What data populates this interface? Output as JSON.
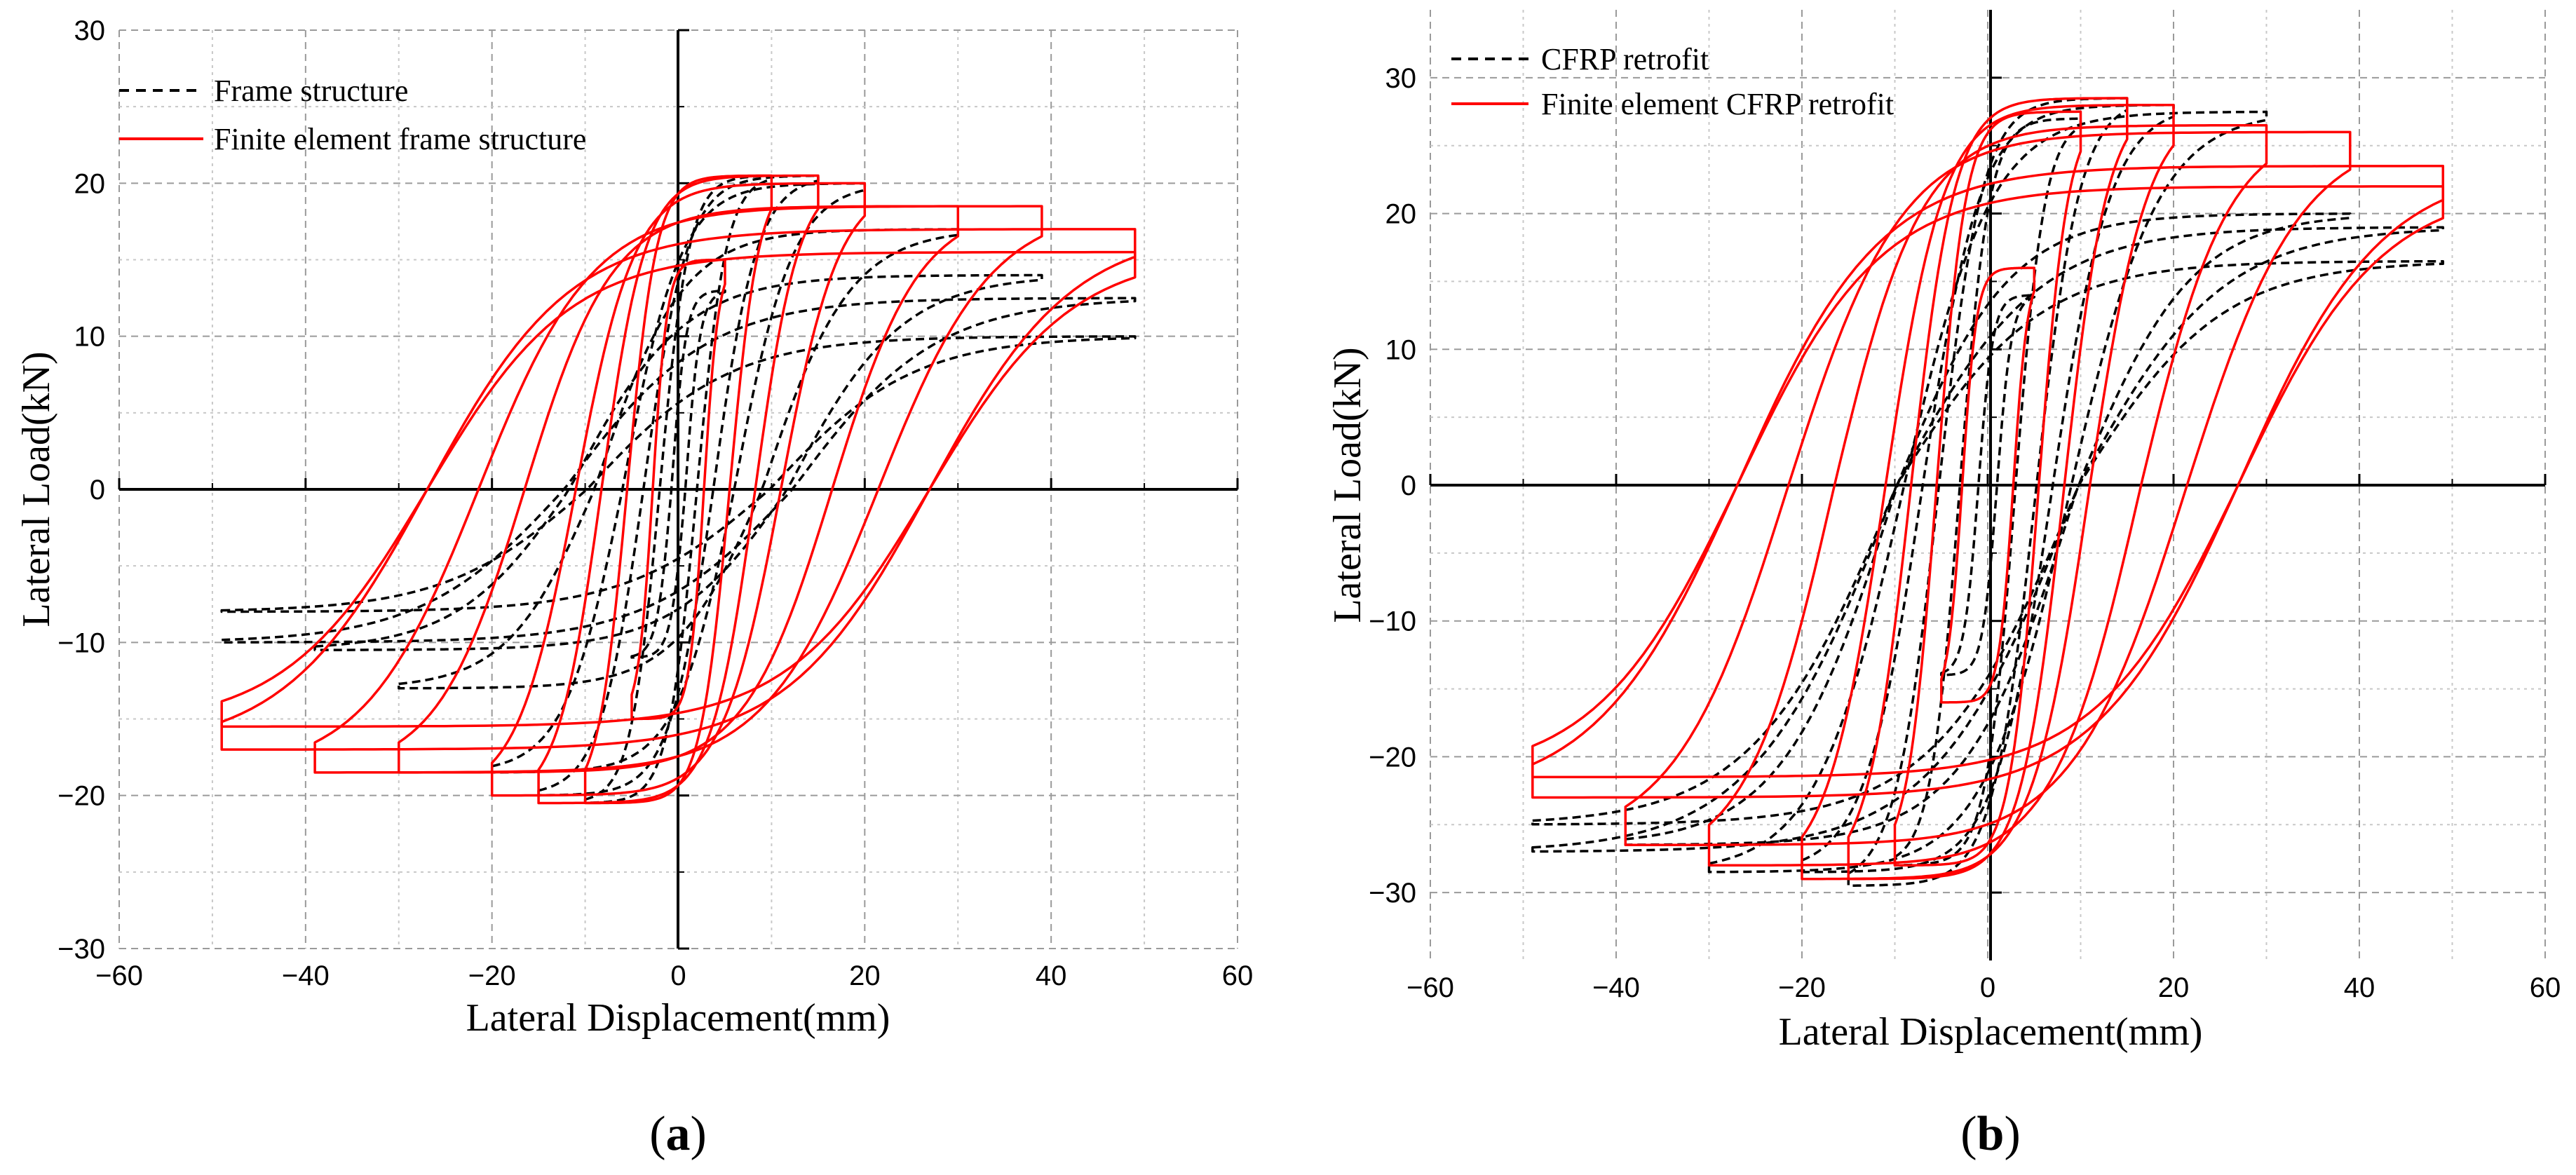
{
  "chart_data": [
    {
      "type": "line",
      "panel_label": "(a)",
      "panel_letter": "a",
      "xlabel": "Lateral Displacement(mm)",
      "ylabel": "Lateral Load(kN)",
      "xlim": [
        -60,
        60
      ],
      "ylim": [
        -30,
        30
      ],
      "xticks": [
        -60,
        -40,
        -20,
        0,
        20,
        40,
        60
      ],
      "yticks": [
        -30,
        -20,
        -10,
        0,
        10,
        20,
        30
      ],
      "xtick_labels": [
        "−60",
        "−40",
        "−20",
        "0",
        "20",
        "40",
        "60"
      ],
      "ytick_labels": [
        "−30",
        "−20",
        "−10",
        "0",
        "10",
        "20",
        "30"
      ],
      "grid": true,
      "legend_position": "top-left",
      "legend": [
        "Frame structure",
        "Finite element frame structure"
      ],
      "series": [
        {
          "name": "Frame structure",
          "style": "dashed",
          "color": "#000000",
          "loops": [
            {
              "amp": 5,
              "fmax": 13,
              "fmin": -11,
              "pinch": 0.15
            },
            {
              "amp": 10,
              "fmax": 20.5,
              "fmin": -20.5,
              "pinch": 0.2
            },
            {
              "amp": 15,
              "fmax": 20.5,
              "fmin": -20,
              "pinch": 0.25
            },
            {
              "amp": 20,
              "fmax": 20,
              "fmin": -18.5,
              "pinch": 0.3
            },
            {
              "amp": 30,
              "fmax": 17,
              "fmin": -13,
              "pinch": 0.3
            },
            {
              "amp": 39,
              "fmax": 14,
              "fmin": -10.5,
              "pinch": 0.3
            },
            {
              "amp": 49,
              "fmax": 12.5,
              "fmin": -10,
              "pinch": 0.25
            },
            {
              "amp": 49,
              "fmax": 10,
              "fmin": -8,
              "pinch": 0.2
            }
          ]
        },
        {
          "name": "Finite element frame structure",
          "style": "solid",
          "color": "#ff0000",
          "loops": [
            {
              "amp": 5,
              "fmax": 15,
              "fmin": -15,
              "pinch": 0.55
            },
            {
              "amp": 10,
              "fmax": 20.5,
              "fmin": -20.5,
              "pinch": 0.55
            },
            {
              "amp": 15,
              "fmax": 20.5,
              "fmin": -20.5,
              "pinch": 0.55
            },
            {
              "amp": 20,
              "fmax": 20,
              "fmin": -20,
              "pinch": 0.55
            },
            {
              "amp": 30,
              "fmax": 18.5,
              "fmin": -18.5,
              "pinch": 0.55
            },
            {
              "amp": 39,
              "fmax": 18.5,
              "fmin": -18.5,
              "pinch": 0.55
            },
            {
              "amp": 49,
              "fmax": 17,
              "fmin": -17,
              "pinch": 0.55
            },
            {
              "amp": 49,
              "fmax": 15.5,
              "fmin": -15.5,
              "pinch": 0.55
            }
          ]
        }
      ]
    },
    {
      "type": "line",
      "panel_label": "(b)",
      "panel_letter": "b",
      "xlabel": "Lateral Displacement(mm)",
      "ylabel": "Lateral Load(kN)",
      "xlim": [
        -60,
        60
      ],
      "ylim": [
        -35,
        35
      ],
      "xticks": [
        -60,
        -40,
        -20,
        0,
        20,
        40,
        60
      ],
      "yticks": [
        -30,
        -20,
        -10,
        0,
        10,
        20,
        30
      ],
      "xtick_labels": [
        "−60",
        "−40",
        "−20",
        "0",
        "20",
        "40",
        "60"
      ],
      "ytick_labels": [
        "−30",
        "−20",
        "−10",
        "0",
        "10",
        "20",
        "30"
      ],
      "grid": true,
      "legend_position": "top-left",
      "legend": [
        "CFRP retrofit",
        "Finite element CFRP retrofit"
      ],
      "series": [
        {
          "name": "CFRP retrofit",
          "style": "dashed",
          "color": "#000000",
          "loops": [
            {
              "amp": 5,
              "fmax": 14,
              "fmin": -14,
              "pinch": 0.2
            },
            {
              "amp": 10,
              "fmax": 27,
              "fmin": -28,
              "pinch": 0.3
            },
            {
              "amp": 15,
              "fmax": 28.5,
              "fmin": -29.5,
              "pinch": 0.35
            },
            {
              "amp": 20,
              "fmax": 28,
              "fmin": -28.5,
              "pinch": 0.35
            },
            {
              "amp": 30,
              "fmax": 27.5,
              "fmin": -28.5,
              "pinch": 0.3
            },
            {
              "amp": 39,
              "fmax": 20,
              "fmin": -26.5,
              "pinch": 0.25
            },
            {
              "amp": 49,
              "fmax": 19,
              "fmin": -27,
              "pinch": 0.2
            },
            {
              "amp": 49,
              "fmax": 16.5,
              "fmin": -25,
              "pinch": 0.2
            }
          ]
        },
        {
          "name": "Finite element CFRP retrofit",
          "style": "solid",
          "color": "#ff0000",
          "loops": [
            {
              "amp": 5,
              "fmax": 16,
              "fmin": -16,
              "pinch": 0.55
            },
            {
              "amp": 10,
              "fmax": 27.5,
              "fmin": -28,
              "pinch": 0.55
            },
            {
              "amp": 15,
              "fmax": 28.5,
              "fmin": -29,
              "pinch": 0.55
            },
            {
              "amp": 20,
              "fmax": 28,
              "fmin": -29,
              "pinch": 0.55
            },
            {
              "amp": 30,
              "fmax": 26.5,
              "fmin": -28,
              "pinch": 0.55
            },
            {
              "amp": 39,
              "fmax": 26,
              "fmin": -26.5,
              "pinch": 0.55
            },
            {
              "amp": 49,
              "fmax": 23.5,
              "fmin": -23,
              "pinch": 0.55
            },
            {
              "amp": 49,
              "fmax": 22,
              "fmin": -21.5,
              "pinch": 0.55
            }
          ]
        }
      ]
    }
  ]
}
